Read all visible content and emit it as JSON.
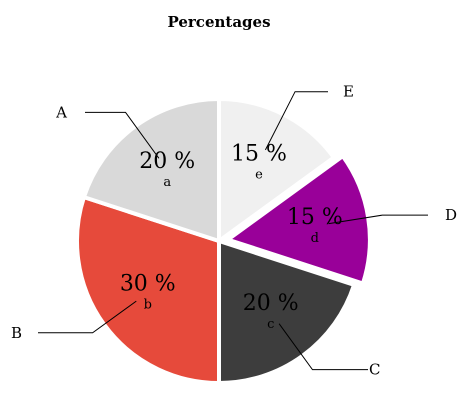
{
  "chart_data": {
    "type": "pie",
    "title": "Percentages",
    "slices": [
      {
        "value": 15,
        "label": "15 %",
        "sublabel": "e",
        "callout": "E",
        "color": "#f0f0f0",
        "text_color": "#000000",
        "explode": false
      },
      {
        "value": 15,
        "label": "15 %",
        "sublabel": "d",
        "callout": "D",
        "color": "#990099",
        "text_color": "#000000",
        "explode": true
      },
      {
        "value": 20,
        "label": "20 %",
        "sublabel": "c",
        "callout": "C",
        "color": "#3d3d3d",
        "text_color": "#000000",
        "explode": false
      },
      {
        "value": 30,
        "label": "30 %",
        "sublabel": "b",
        "callout": "B",
        "color": "#e64a3b",
        "text_color": "#000000",
        "explode": false
      },
      {
        "value": 20,
        "label": "20 %",
        "sublabel": "a",
        "callout": "A",
        "color": "#d9d9d9",
        "text_color": "#000000",
        "explode": false
      }
    ],
    "start": "12 o'clock",
    "direction": "clockwise",
    "slice_separator_color": "#ffffff"
  }
}
